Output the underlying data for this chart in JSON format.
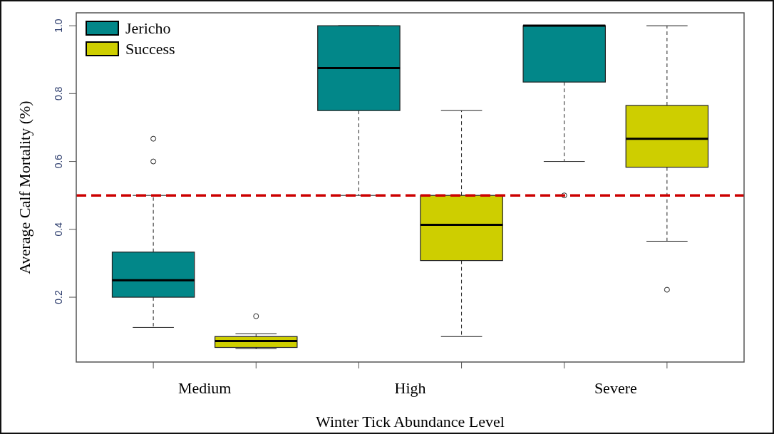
{
  "chart_data": {
    "type": "box",
    "xlabel": "Winter Tick Abundance Level",
    "ylabel": "Average Calf Mortality (%)",
    "categories": [
      "Medium",
      "High",
      "Severe"
    ],
    "ylim": [
      0.009,
      1.038
    ],
    "yticks": [
      0.2,
      0.4,
      0.6,
      0.8,
      {
        "value": 1,
        "label": "1.0"
      }
    ],
    "legend": "top left",
    "ref_lines": [
      {
        "axis": "y",
        "value": 0.5,
        "color": "#cc0000",
        "line_style": "dashed"
      }
    ],
    "series": [
      {
        "name": "Jericho",
        "color": "#028789",
        "boxes": [
          {
            "low": 0.111,
            "q1": 0.2,
            "median": 0.25,
            "q3": 0.333,
            "high": 0.5,
            "outliers": [
              0.6,
              0.667
            ]
          },
          {
            "low": 0.5,
            "q1": 0.75,
            "median": 0.875,
            "q3": 1.0,
            "high": 1.0
          },
          {
            "low": 0.6,
            "q1": 0.834,
            "median": 1.0,
            "q3": 1.0,
            "high": 1.0,
            "outliers": [
              0.5
            ]
          }
        ]
      },
      {
        "name": "Success",
        "color": "#cece00",
        "boxes": [
          {
            "low": 0.048,
            "q1": 0.052,
            "median": 0.071,
            "q3": 0.084,
            "high": 0.092,
            "outliers": [
              0.144
            ]
          },
          {
            "low": 0.084,
            "q1": 0.308,
            "median": 0.413,
            "q3": 0.5,
            "high": 0.75
          },
          {
            "low": 0.365,
            "q1": 0.583,
            "median": 0.667,
            "q3": 0.765,
            "high": 1.0,
            "outliers": [
              0.222
            ]
          }
        ]
      }
    ]
  }
}
